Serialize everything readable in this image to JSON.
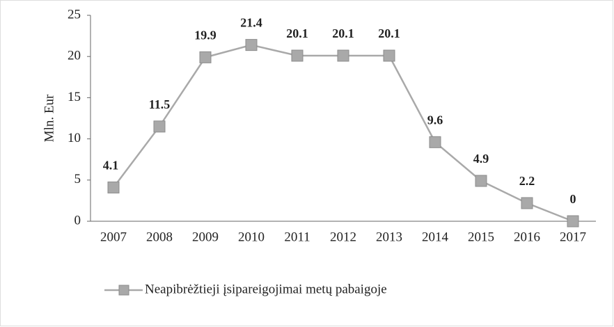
{
  "chart_data": {
    "type": "line",
    "y_label": "Mln. Eur",
    "categories": [
      "2007",
      "2008",
      "2009",
      "2010",
      "2011",
      "2012",
      "2013",
      "2014",
      "2015",
      "2016",
      "2017"
    ],
    "series": [
      {
        "name": "Neapibrėžtieji įsipareigojimai metų pabaigoje",
        "color": "#a9a9a9",
        "values": [
          4.1,
          11.5,
          19.9,
          21.4,
          20.1,
          20.1,
          20.1,
          9.6,
          4.9,
          2.2,
          0
        ]
      }
    ],
    "ylim": [
      0,
      25
    ],
    "yticks": [
      0,
      5,
      10,
      15,
      20,
      25
    ],
    "legend": "bottom",
    "data_labels": true
  }
}
